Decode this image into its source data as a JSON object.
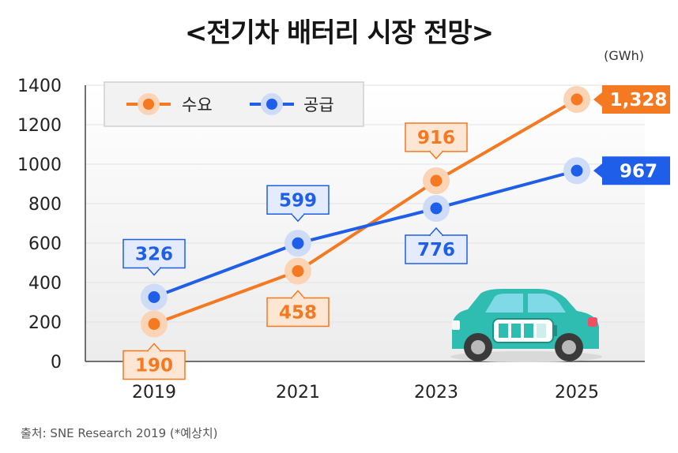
{
  "title": "<전기차 배터리 시장 전망>",
  "unit": "(GWh)",
  "source": "출처: SNE Research 2019 (*예상치)",
  "colors": {
    "demand": "#f47920",
    "supply": "#1f5ee8",
    "demand_halo": "#fbd3b5",
    "supply_halo": "#cfdcf8",
    "car_body": "#2ebdb0"
  },
  "chart_data": {
    "type": "line",
    "x": [
      "2019",
      "2021",
      "2023",
      "2025"
    ],
    "ylim": [
      0,
      1400
    ],
    "yticks": [
      "0",
      "200",
      "400",
      "600",
      "800",
      "1000",
      "1200",
      "1400"
    ],
    "legend": "top-left",
    "series": [
      {
        "name": "수요",
        "key": "demand",
        "values": [
          190,
          458,
          916,
          1328
        ],
        "labels": [
          "190",
          "458",
          "916",
          "1,328"
        ]
      },
      {
        "name": "공급",
        "key": "supply",
        "values": [
          326,
          599,
          776,
          967
        ],
        "labels": [
          "326",
          "599",
          "776",
          "967"
        ]
      }
    ]
  }
}
